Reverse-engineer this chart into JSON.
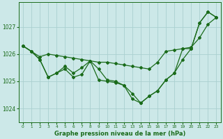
{
  "title": "Graphe pression niveau de la mer (hPa)",
  "background_color": "#cce8e8",
  "grid_color": "#aad0d0",
  "line_color": "#1a6b1a",
  "xlim": [
    -0.5,
    23.5
  ],
  "ylim": [
    1023.5,
    1027.9
  ],
  "yticks": [
    1024,
    1025,
    1026,
    1027
  ],
  "xticks": [
    0,
    1,
    2,
    3,
    4,
    5,
    6,
    7,
    8,
    9,
    10,
    11,
    12,
    13,
    14,
    15,
    16,
    17,
    18,
    19,
    20,
    21,
    22,
    23
  ],
  "series_main": [
    1026.3,
    1026.1,
    1025.8,
    1025.15,
    1025.3,
    1025.45,
    1025.15,
    1025.25,
    1025.75,
    1025.05,
    1025.0,
    1024.95,
    1024.85,
    1024.35,
    1024.2,
    1024.45,
    1024.65,
    1025.05,
    1025.3,
    1025.8,
    1026.2,
    1027.15,
    1027.55,
    1027.35
  ],
  "series_alt": [
    1026.3,
    1026.1,
    1025.8,
    1025.15,
    1025.3,
    1025.55,
    1025.3,
    1025.5,
    1025.75,
    1025.45,
    1025.05,
    1025.0,
    1024.85,
    1024.55,
    1024.2,
    1024.45,
    1024.65,
    1025.05,
    1025.3,
    1026.2,
    1026.2,
    1027.15,
    1027.55,
    1027.35
  ],
  "series_smooth": [
    1026.3,
    1026.1,
    1025.9,
    1026.0,
    1025.95,
    1025.9,
    1025.85,
    1025.8,
    1025.75,
    1025.7,
    1025.7,
    1025.65,
    1025.6,
    1025.55,
    1025.5,
    1025.45,
    1025.7,
    1026.1,
    1026.15,
    1026.2,
    1026.25,
    1026.6,
    1027.1,
    1027.35
  ],
  "marker": "D",
  "marker_size": 2.0,
  "line_width": 0.9
}
